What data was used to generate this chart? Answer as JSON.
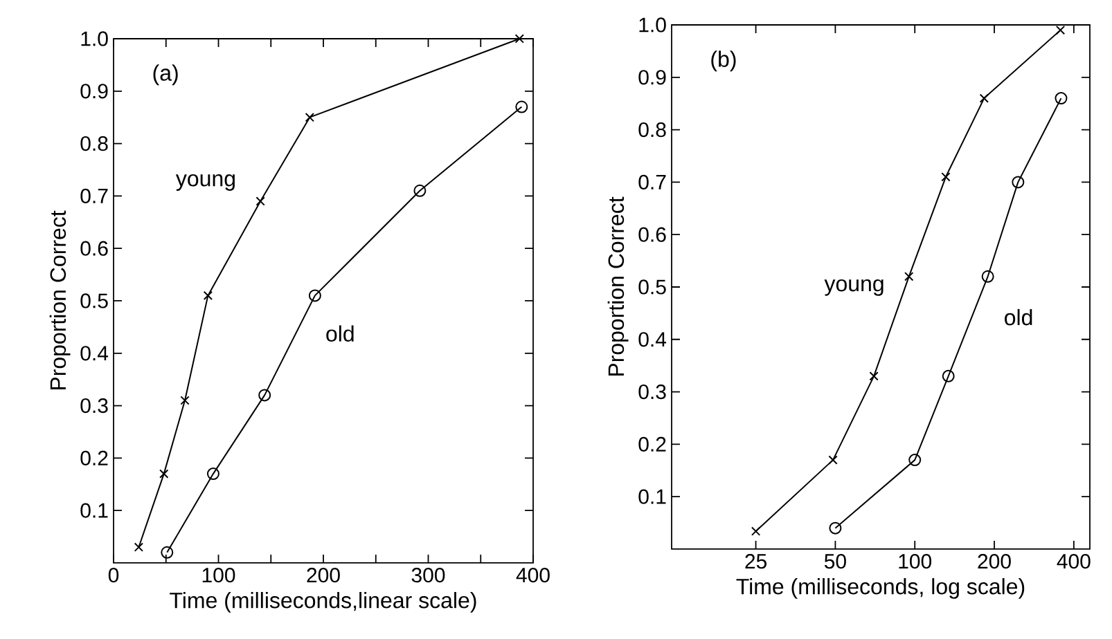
{
  "chart_data": [
    {
      "type": "line",
      "title": "(a)",
      "xlabel": "Time  (milliseconds,linear scale)",
      "ylabel": "Proportion Correct",
      "xlim": [
        0,
        400
      ],
      "ylim": [
        0,
        1.0
      ],
      "xticks": [
        0,
        {
          "value": 50,
          "label": null
        },
        100,
        {
          "value": 150,
          "label": null
        },
        200,
        {
          "value": 250,
          "label": null
        },
        300,
        {
          "value": 350,
          "label": null
        },
        400
      ],
      "yticks": [
        0.1,
        0.2,
        0.3,
        0.4,
        0.5,
        0.6,
        0.7,
        0.8,
        0.9,
        {
          "value": 1.0,
          "label": "1.0"
        }
      ],
      "series": [
        {
          "name": "young",
          "color": "#000000",
          "marker": "cross",
          "x": [
            24,
            48,
            68,
            90,
            140,
            187,
            387
          ],
          "values": [
            0.03,
            0.17,
            0.31,
            0.51,
            0.69,
            0.85,
            1.0
          ]
        },
        {
          "name": "old",
          "color": "#000000",
          "marker": "circle",
          "x": [
            51,
            95,
            144,
            192,
            292,
            389
          ],
          "values": [
            0.02,
            0.17,
            0.32,
            0.51,
            0.71,
            0.87
          ]
        }
      ]
    },
    {
      "type": "line",
      "title": "(b)",
      "xlabel": "Time  (milliseconds, log scale)",
      "ylabel": "Proportion Correct",
      "log": "x",
      "xlim": [
        12,
        460
      ],
      "ylim": [
        0,
        1.0
      ],
      "xticks": [
        25,
        50,
        100,
        200,
        400
      ],
      "yticks": [
        0.1,
        0.2,
        0.3,
        0.4,
        0.5,
        0.6,
        0.7,
        0.8,
        0.9,
        {
          "value": 1.0,
          "label": "1.0"
        }
      ],
      "series": [
        {
          "name": "young",
          "color": "#000000",
          "marker": "cross",
          "x": [
            25,
            49,
            70,
            95,
            131,
            183,
            356
          ],
          "values": [
            0.034,
            0.17,
            0.33,
            0.52,
            0.71,
            0.86,
            0.99
          ]
        },
        {
          "name": "old",
          "color": "#000000",
          "marker": "circle",
          "x": [
            50,
            100,
            134,
            189,
            246,
            358
          ],
          "values": [
            0.04,
            0.17,
            0.33,
            0.52,
            0.7,
            0.86
          ]
        }
      ]
    }
  ]
}
